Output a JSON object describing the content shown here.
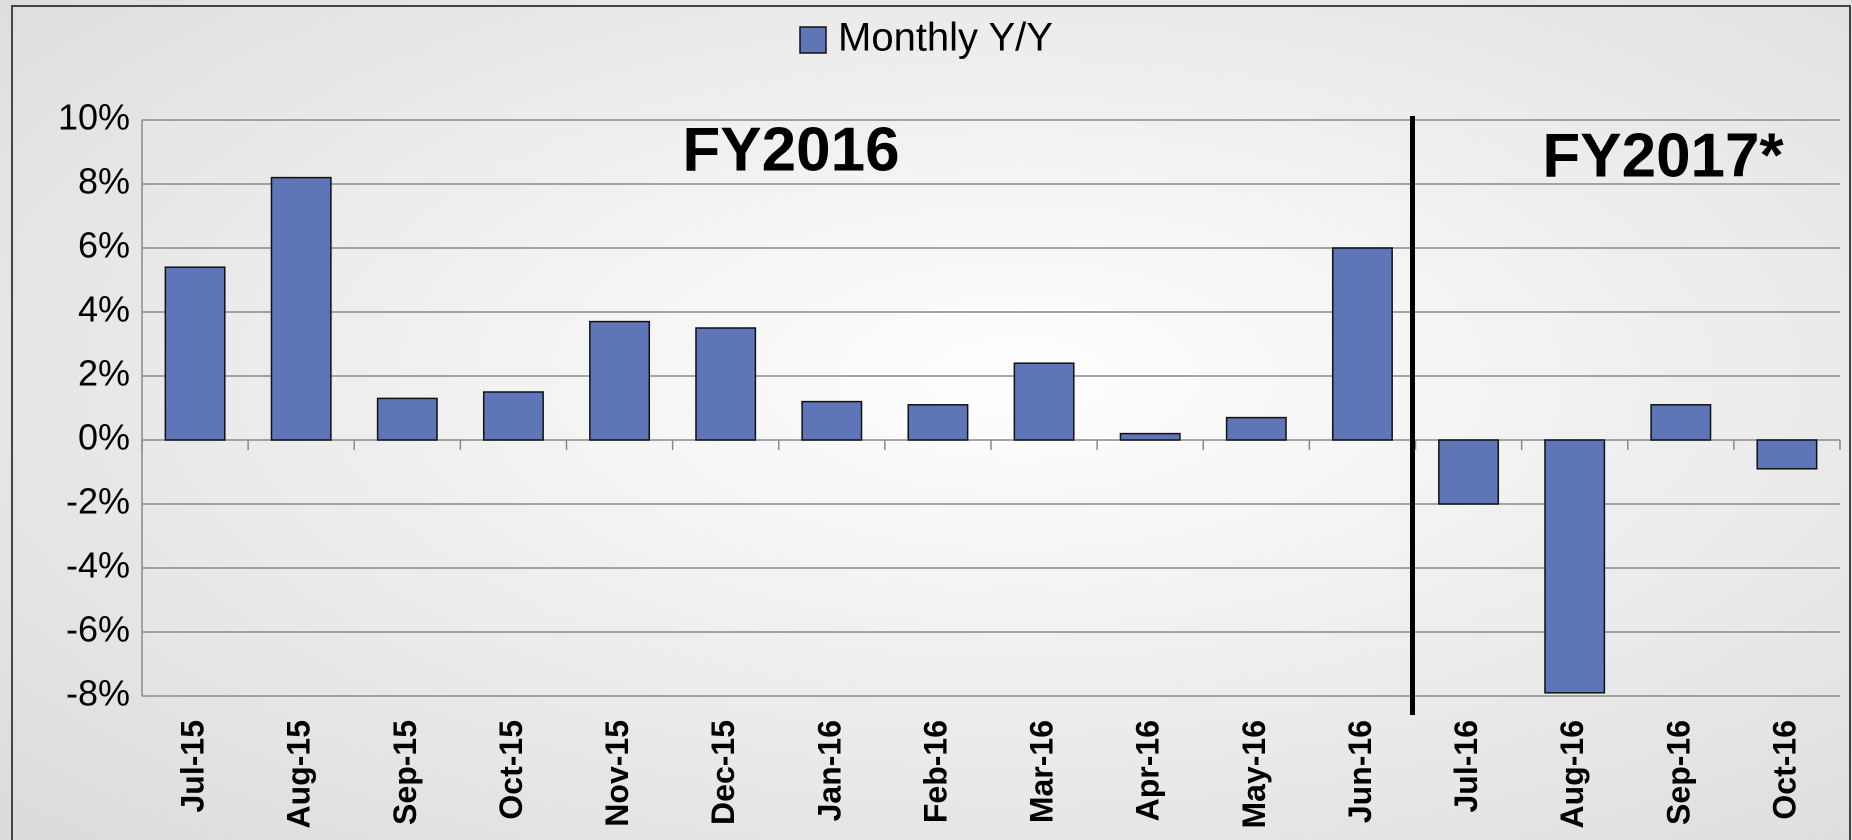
{
  "chart_data": {
    "type": "bar",
    "categories": [
      "Jul-15",
      "Aug-15",
      "Sep-15",
      "Oct-15",
      "Nov-15",
      "Dec-15",
      "Jan-16",
      "Feb-16",
      "Mar-16",
      "Apr-16",
      "May-16",
      "Jun-16",
      "Jul-16",
      "Aug-16",
      "Sep-16",
      "Oct-16"
    ],
    "series": [
      {
        "name": "Monthly Y/Y",
        "color": "#5e75b8",
        "values": [
          5.4,
          8.2,
          1.3,
          1.5,
          3.7,
          3.5,
          1.2,
          1.1,
          2.4,
          0.2,
          0.7,
          6.0,
          -2.0,
          -7.9,
          1.1,
          -0.9
        ]
      }
    ],
    "ylim": [
      -8,
      10
    ],
    "yticks": [
      {
        "value": -8,
        "label": "-8%"
      },
      {
        "value": -6,
        "label": "-6%"
      },
      {
        "value": -4,
        "label": "-4%"
      },
      {
        "value": -2,
        "label": "-2%"
      },
      {
        "value": 0,
        "label": "0%"
      },
      {
        "value": 2,
        "label": "2%"
      },
      {
        "value": 4,
        "label": "4%"
      },
      {
        "value": 6,
        "label": "6%"
      },
      {
        "value": 8,
        "label": "8%"
      },
      {
        "value": 10,
        "label": "10%"
      }
    ],
    "grid": true,
    "legend": "top",
    "annotations": [
      "FY2016",
      "FY2017*"
    ]
  }
}
